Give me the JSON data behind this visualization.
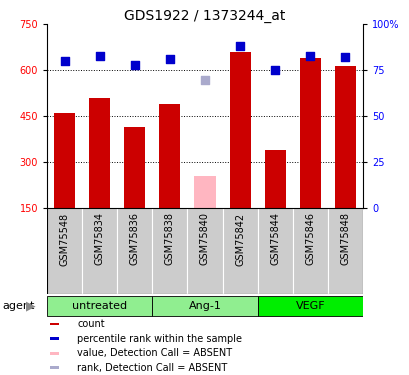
{
  "title": "GDS1922 / 1373244_at",
  "samples": [
    "GSM75548",
    "GSM75834",
    "GSM75836",
    "GSM75838",
    "GSM75840",
    "GSM75842",
    "GSM75844",
    "GSM75846",
    "GSM75848"
  ],
  "count_values": [
    460,
    510,
    415,
    490,
    null,
    660,
    340,
    640,
    615
  ],
  "count_absent": [
    null,
    null,
    null,
    null,
    255,
    null,
    null,
    null,
    null
  ],
  "rank_values": [
    80,
    83,
    78,
    81,
    null,
    88,
    75,
    83,
    82
  ],
  "rank_absent": [
    null,
    null,
    null,
    null,
    70,
    null,
    null,
    null,
    null
  ],
  "ylim_left": [
    150,
    750
  ],
  "ylim_right": [
    0,
    100
  ],
  "yticks_left": [
    150,
    300,
    450,
    600,
    750
  ],
  "yticks_right": [
    0,
    25,
    50,
    75,
    100
  ],
  "ytick_labels_right": [
    "0",
    "25",
    "50",
    "75",
    "100%"
  ],
  "hlines": [
    300,
    450,
    600
  ],
  "bar_color": "#CC0000",
  "bar_absent_color": "#FFB6C1",
  "dot_color": "#0000CC",
  "dot_absent_color": "#AAAACC",
  "bar_width": 0.6,
  "dot_size": 30,
  "group_labels": [
    "untreated",
    "Ang-1",
    "VEGF"
  ],
  "group_ranges": [
    [
      0,
      2
    ],
    [
      3,
      5
    ],
    [
      6,
      8
    ]
  ],
  "group_colors": [
    "#90EE90",
    "#90EE90",
    "#00EE00"
  ],
  "legend_items": [
    {
      "label": "count",
      "color": "#CC0000"
    },
    {
      "label": "percentile rank within the sample",
      "color": "#0000CC"
    },
    {
      "label": "value, Detection Call = ABSENT",
      "color": "#FFB6C1"
    },
    {
      "label": "rank, Detection Call = ABSENT",
      "color": "#AAAACC"
    }
  ],
  "xlabels_bg": "#CCCCCC",
  "title_fontsize": 10,
  "tick_fontsize": 7,
  "label_fontsize": 7,
  "legend_fontsize": 7,
  "group_fontsize": 8
}
